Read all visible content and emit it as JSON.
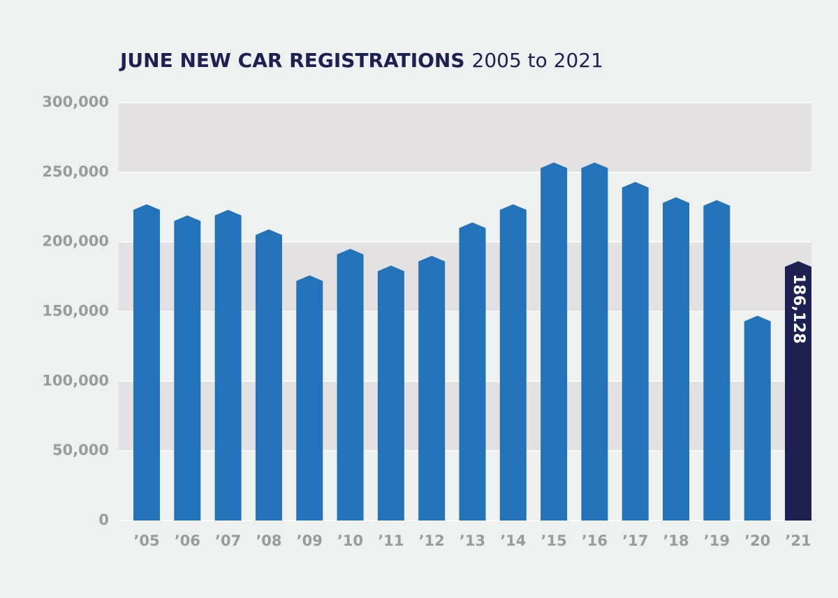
{
  "chart_data": {
    "type": "bar",
    "title": "JUNE NEW CAR REGISTRATIONS",
    "subtitle": "2005 to 2021",
    "categories": [
      "’05",
      "’06",
      "’07",
      "’08",
      "’09",
      "’10",
      "’11",
      "’12",
      "’13",
      "’14",
      "’15",
      "’16",
      "’17",
      "’18",
      "’19",
      "’20",
      "’21"
    ],
    "values": [
      227000,
      219000,
      223000,
      209000,
      176000,
      195000,
      183000,
      190000,
      214000,
      227000,
      257000,
      257000,
      243000,
      232000,
      230000,
      147000,
      186128
    ],
    "value_labels": [
      null,
      null,
      null,
      null,
      null,
      null,
      null,
      null,
      null,
      null,
      null,
      null,
      null,
      null,
      null,
      null,
      "186,128"
    ],
    "colors": [
      "#2273b9",
      "#2273b9",
      "#2273b9",
      "#2273b9",
      "#2273b9",
      "#2273b9",
      "#2273b9",
      "#2273b9",
      "#2273b9",
      "#2273b9",
      "#2273b9",
      "#2273b9",
      "#2273b9",
      "#2273b9",
      "#2273b9",
      "#2273b9",
      "#1c2152"
    ],
    "ylim": [
      0,
      300000
    ],
    "yticks": [
      0,
      {
        "value": 50000,
        "label": "50,000"
      },
      {
        "value": 100000,
        "label": "100,000"
      },
      {
        "value": 150000,
        "label": "150,000"
      },
      {
        "value": 200000,
        "label": "200,000"
      },
      {
        "value": 250000,
        "label": "250,000"
      },
      {
        "value": 300000,
        "label": "300,000"
      }
    ],
    "grid": true,
    "banded": true
  }
}
